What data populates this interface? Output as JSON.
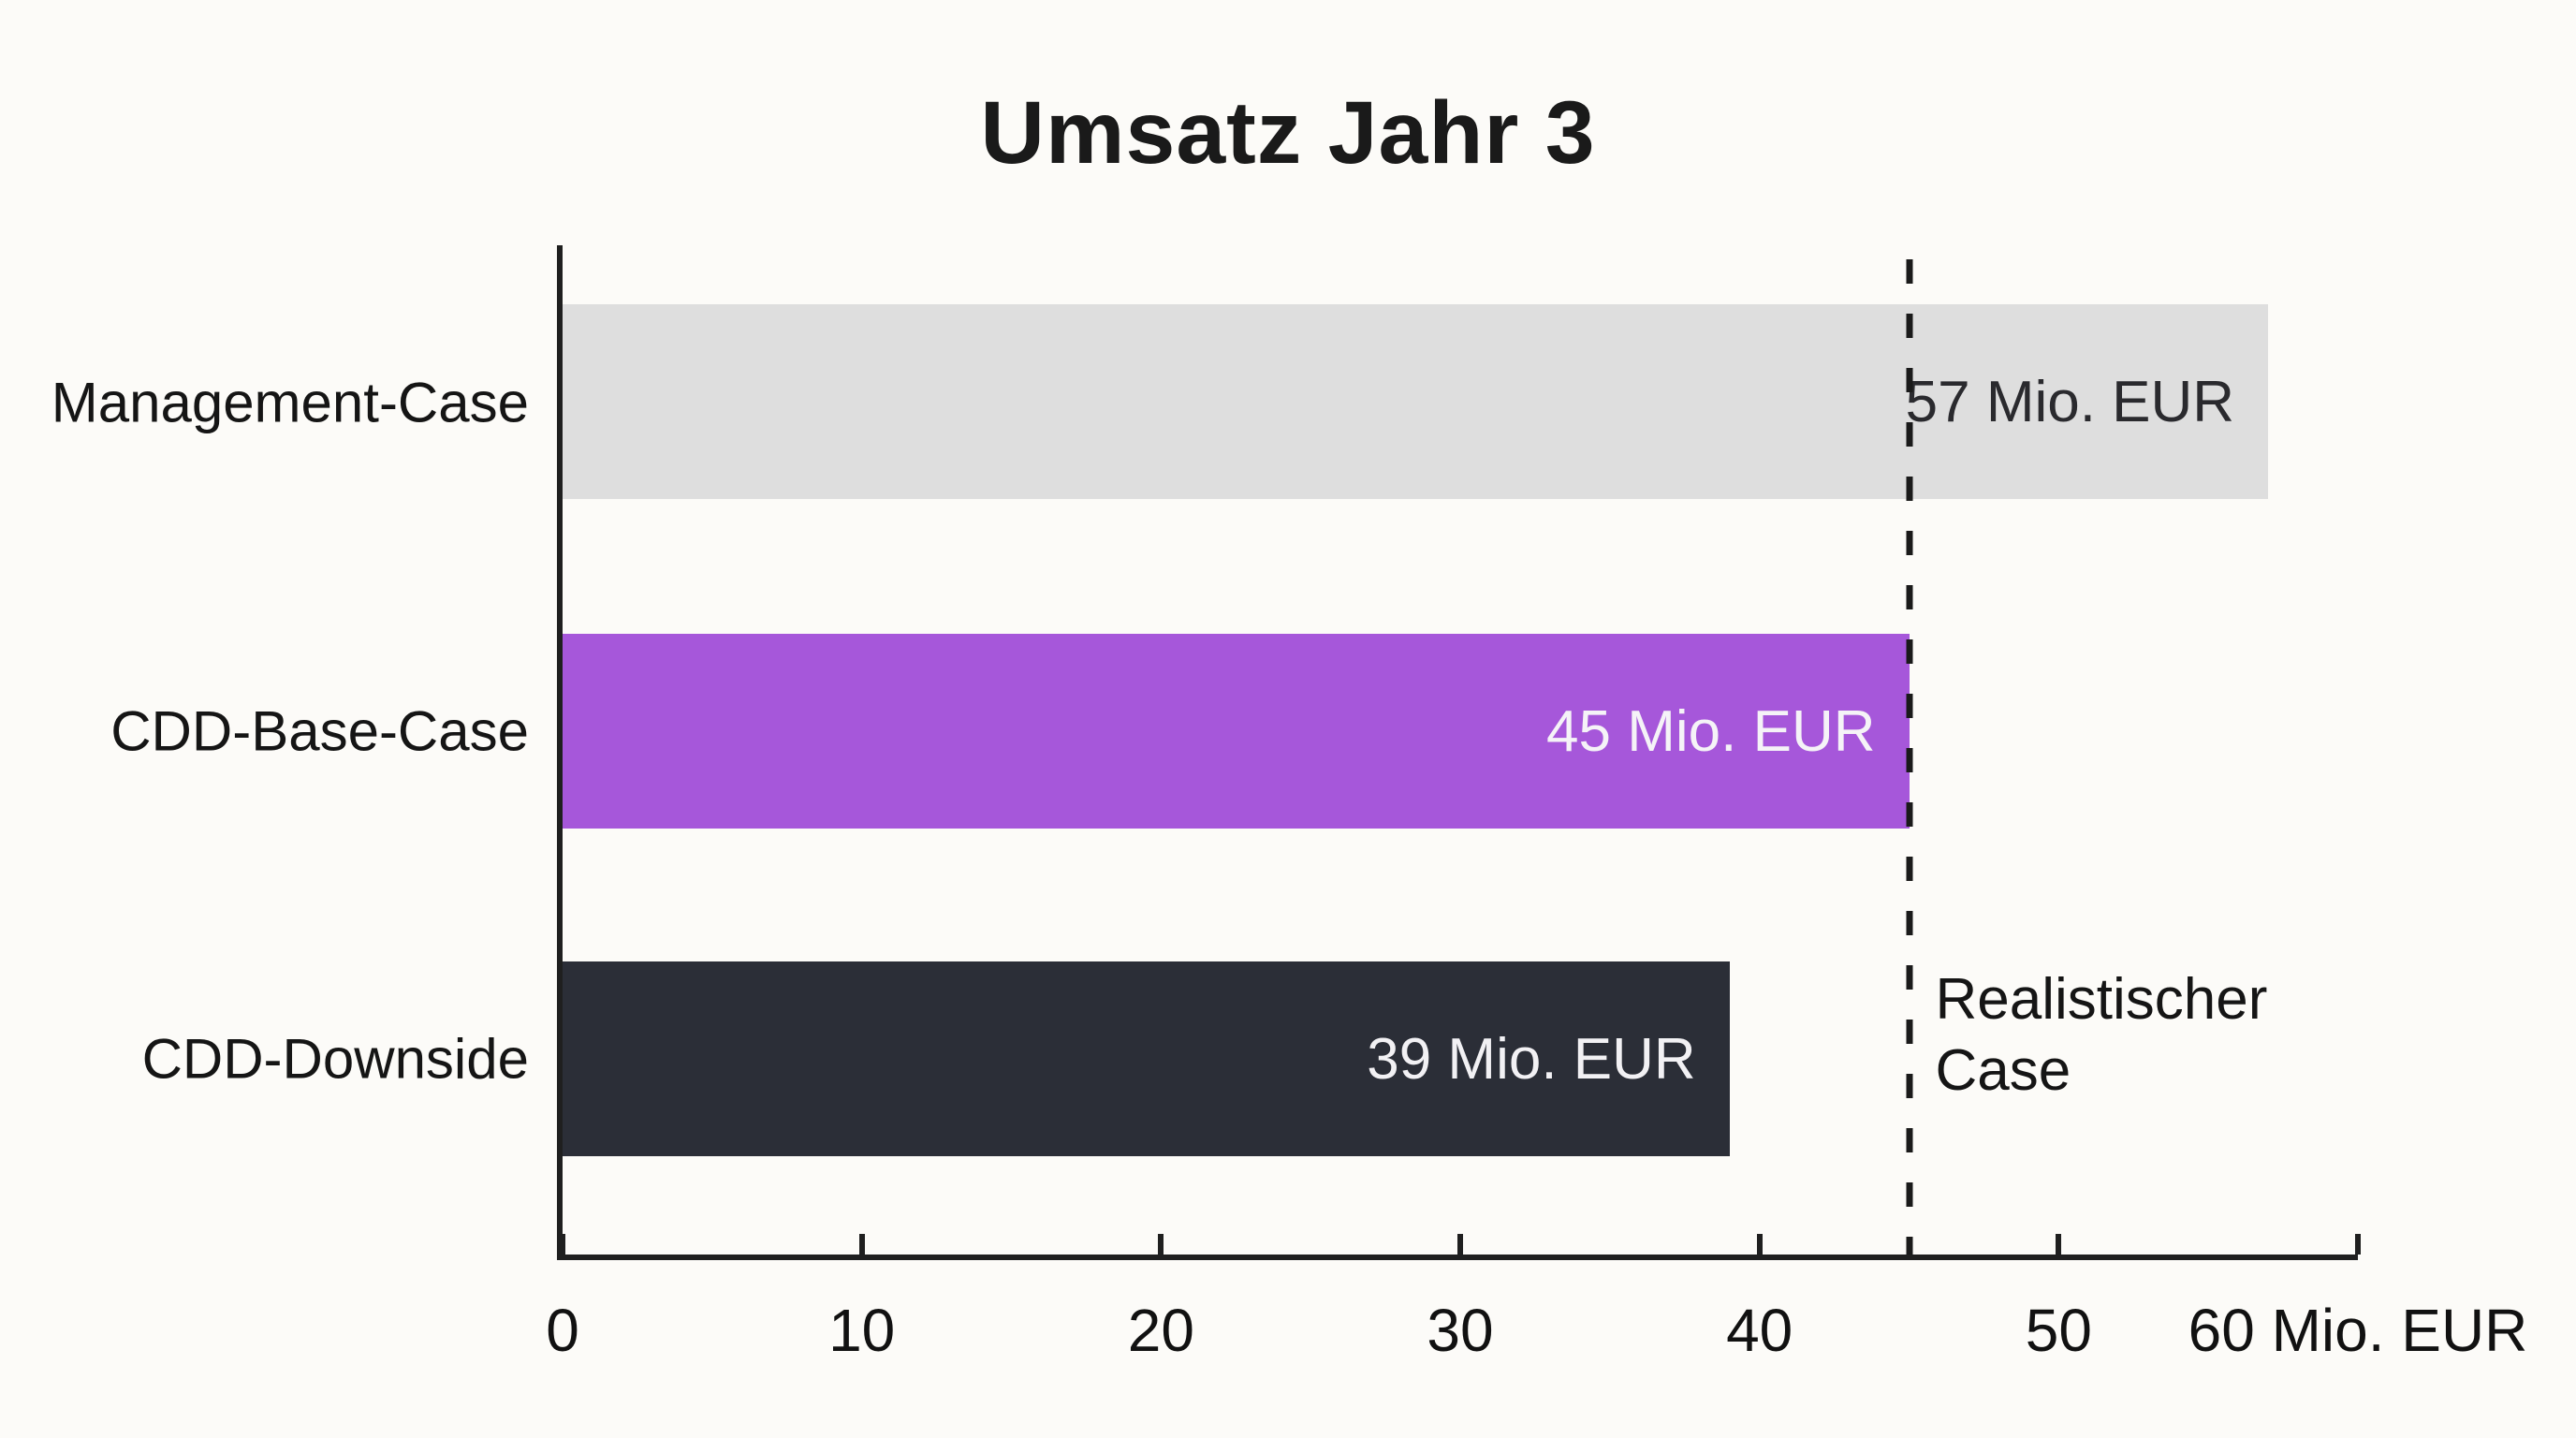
{
  "title": "Umsatz Jahr 3",
  "chart_data": {
    "type": "bar",
    "orientation": "horizontal",
    "title": "Umsatz Jahr 3",
    "categories": [
      "Management-Case",
      "CDD-Base-Case",
      "CDD-Downside"
    ],
    "values": [
      57,
      45,
      39
    ],
    "value_labels": [
      "57 Mio. EUR",
      "45 Mio. EUR",
      "39 Mio. EUR"
    ],
    "bar_colors": [
      "#dedede",
      "#a657da",
      "#2b2e37"
    ],
    "value_label_colors": [
      "#2a2a2e",
      "#f5f3f7",
      "#f2f1f4"
    ],
    "xlabel": "",
    "ylabel": "",
    "xlim": [
      0,
      60
    ],
    "x_ticks": [
      0,
      10,
      20,
      30,
      40,
      50,
      60
    ],
    "x_axis_suffix": " Mio. EUR",
    "grid": "off",
    "legend": "none",
    "reference_line": {
      "value": 45,
      "label": "Realistischer\nCase",
      "style": "dashed"
    }
  },
  "colors": {
    "background": "#fcfbf8",
    "axis": "#1f1f1f",
    "reference_line": "#1a1a1a",
    "text": "#161616"
  }
}
